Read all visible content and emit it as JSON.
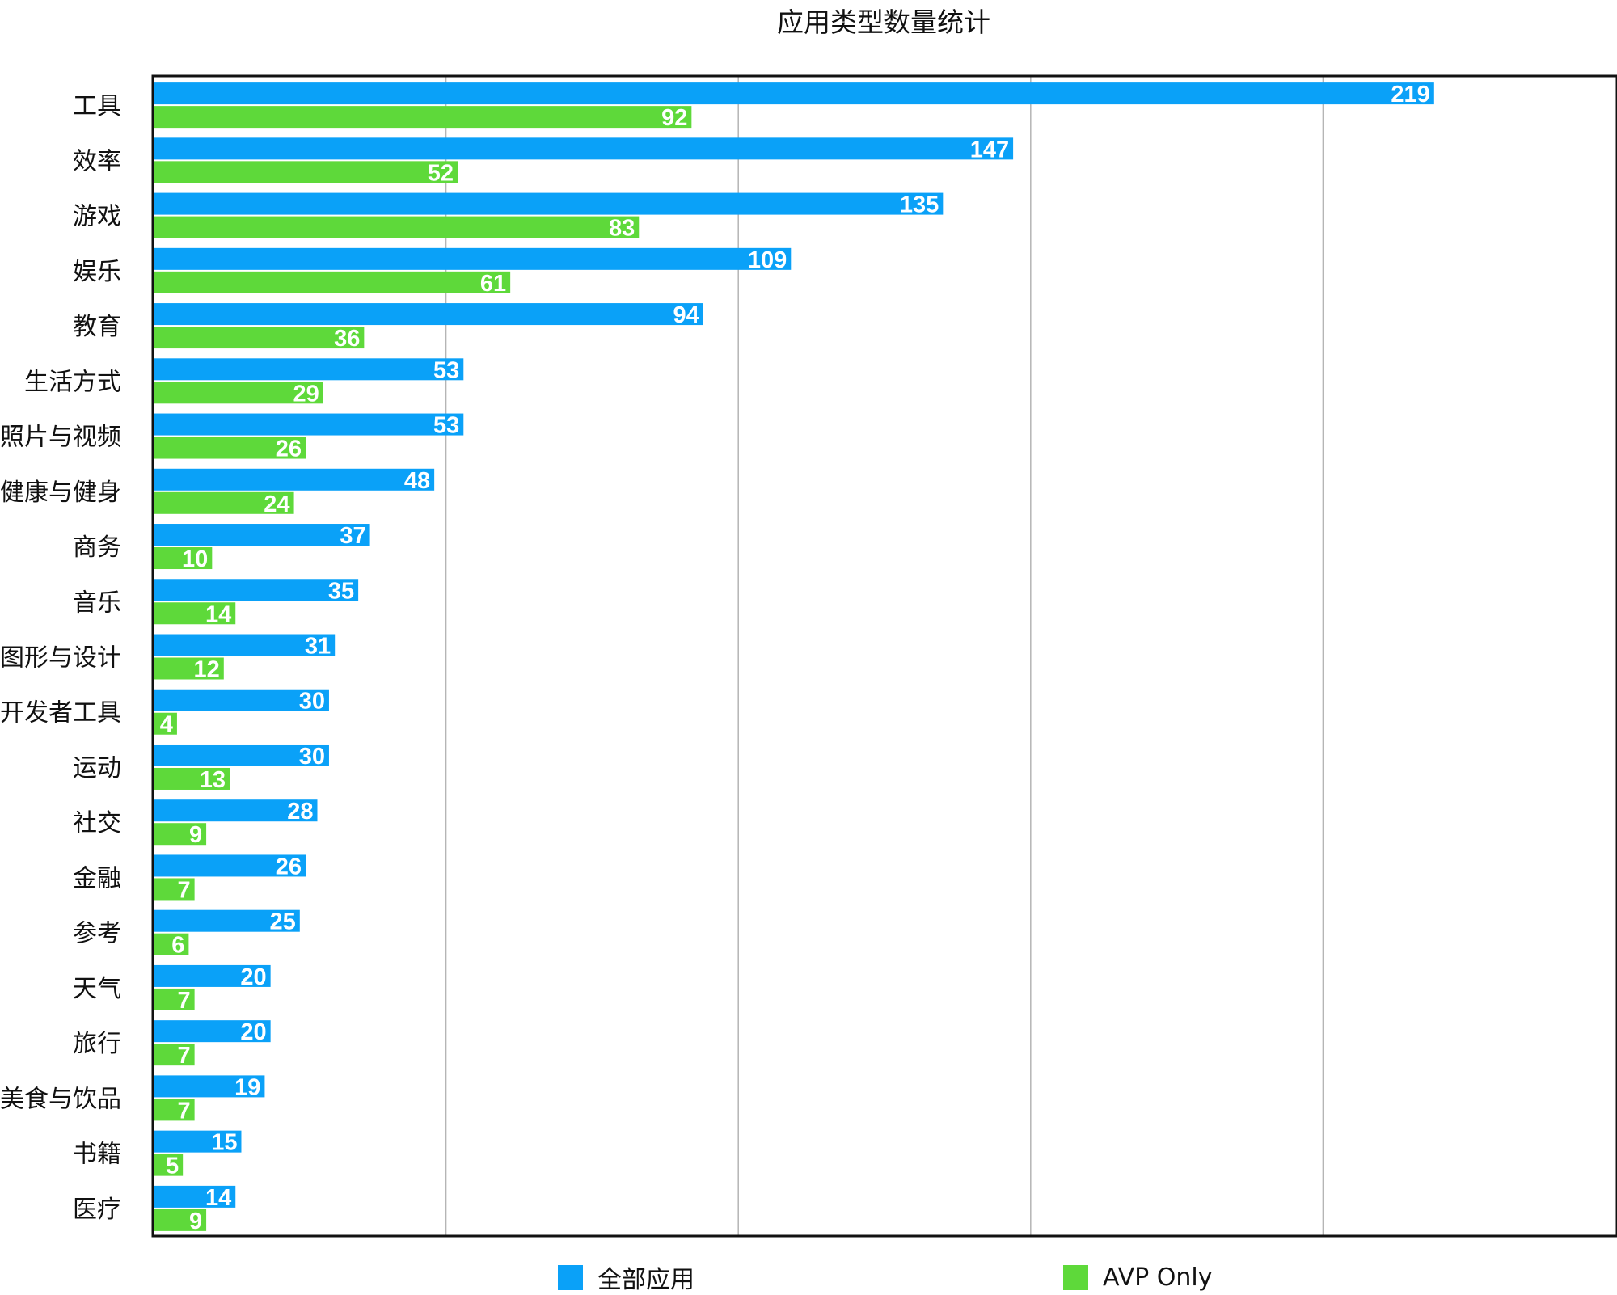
{
  "chart_data": {
    "type": "bar",
    "orientation": "horizontal",
    "title": "应用类型数量统计",
    "xlabel": "",
    "ylabel": "",
    "xlim": [
      0,
      250
    ],
    "grid": true,
    "legend_position": "bottom",
    "categories": [
      "工具",
      "效率",
      "游戏",
      "娱乐",
      "教育",
      "生活方式",
      "照片与视频",
      "健康与健身",
      "商务",
      "音乐",
      "图形与设计",
      "开发者工具",
      "运动",
      "社交",
      "金融",
      "参考",
      "天气",
      "旅行",
      "美食与饮品",
      "书籍",
      "医疗"
    ],
    "series": [
      {
        "name": "全部应用",
        "color": "#0AA1F8",
        "values": [
          219,
          147,
          135,
          109,
          94,
          53,
          53,
          48,
          37,
          35,
          31,
          30,
          30,
          28,
          26,
          25,
          20,
          20,
          19,
          15,
          14
        ]
      },
      {
        "name": "AVP Only",
        "color": "#5ED93A",
        "values": [
          92,
          52,
          83,
          61,
          36,
          29,
          26,
          24,
          10,
          14,
          12,
          4,
          13,
          9,
          7,
          6,
          7,
          7,
          7,
          5,
          9
        ]
      }
    ]
  }
}
